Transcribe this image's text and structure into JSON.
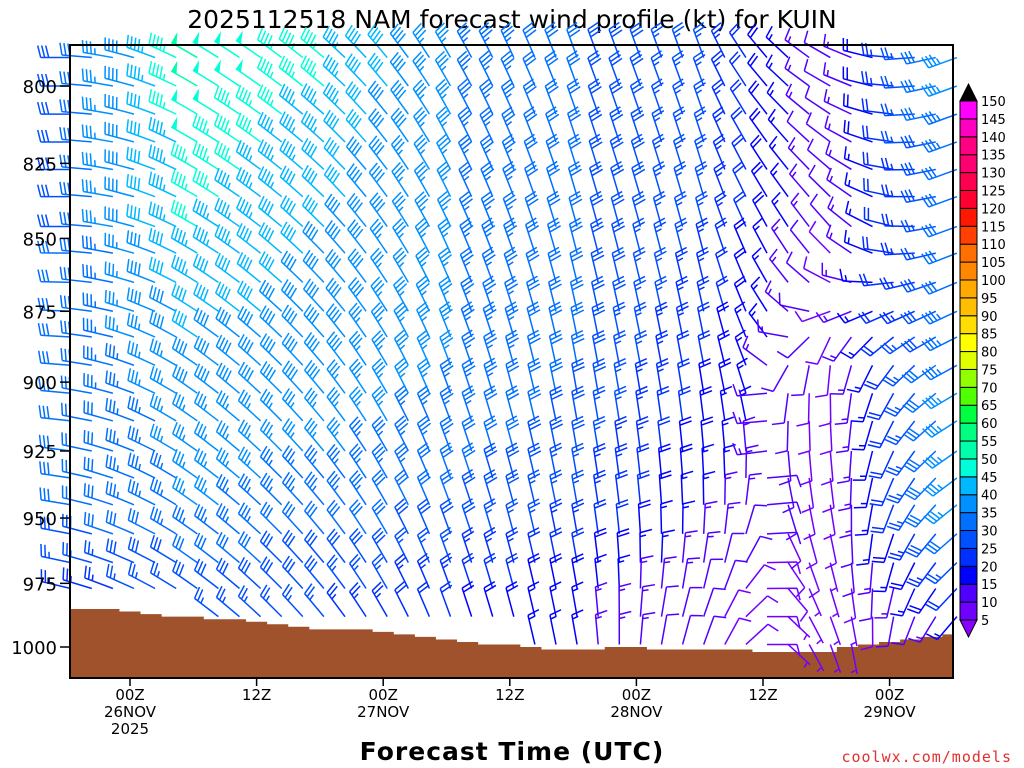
{
  "chart_data": {
    "type": "wind-barb-time-height",
    "title": "2025112518 NAM forecast wind profile (kt) for KUIN",
    "xlabel": "Forecast Time (UTC)",
    "ylabel": "",
    "watermark": "coolwx.com/models",
    "y_axis": {
      "scale": "log-pressure",
      "range_mb": [
        787,
        1012
      ],
      "ticks": [
        800,
        825,
        850,
        875,
        900,
        925,
        950,
        975,
        1000
      ]
    },
    "x_axis": {
      "units": "hours from 00Z 26NOV2025",
      "range_h": [
        -6,
        78
      ],
      "ticks": [
        {
          "h": 0,
          "line1": "00Z",
          "line2": "26NOV",
          "line3": "2025"
        },
        {
          "h": 12,
          "line1": "12Z",
          "line2": "",
          "line3": ""
        },
        {
          "h": 24,
          "line1": "00Z",
          "line2": "27NOV",
          "line3": ""
        },
        {
          "h": 36,
          "line1": "12Z",
          "line2": "",
          "line3": ""
        },
        {
          "h": 48,
          "line1": "00Z",
          "line2": "28NOV",
          "line3": ""
        },
        {
          "h": 60,
          "line1": "12Z",
          "line2": "",
          "line3": ""
        },
        {
          "h": 72,
          "line1": "00Z",
          "line2": "29NOV",
          "line3": ""
        }
      ]
    },
    "barb_times_h": [
      -6,
      -4,
      -2,
      0,
      2,
      4,
      6,
      8,
      10,
      12,
      14,
      16,
      18,
      20,
      22,
      24,
      26,
      28,
      30,
      32,
      34,
      36,
      38,
      40,
      42,
      44,
      46,
      48,
      50,
      52,
      54,
      56,
      58,
      60,
      62,
      64,
      66,
      68,
      70,
      72,
      74,
      76,
      78
    ],
    "barb_levels_mb": [
      791,
      800,
      809,
      818,
      827,
      836,
      846,
      855,
      865,
      875,
      884,
      894,
      904,
      914,
      925,
      935,
      945,
      956,
      967,
      977,
      988,
      999
    ],
    "surface_pressure_mb": [
      985,
      985,
      985,
      986,
      987,
      988,
      988,
      989,
      989,
      990,
      991,
      992,
      993,
      993,
      993,
      994,
      995,
      996,
      997,
      998,
      999,
      999,
      1000,
      1001,
      1001,
      1001,
      1000,
      1000,
      1001,
      1001,
      1001,
      1001,
      1001,
      1002,
      1002,
      1002,
      1002,
      1000,
      999,
      998,
      997,
      996,
      995
    ],
    "wind_keyframes": {
      "times_h": [
        -6,
        6,
        18,
        30,
        42,
        54,
        66,
        78
      ],
      "levels_mb": [
        800,
        850,
        900,
        950,
        990
      ],
      "speed_kt": [
        [
          28,
          50,
          45,
          35,
          30,
          25,
          10,
          35
        ],
        [
          30,
          45,
          40,
          35,
          30,
          25,
          10,
          30
        ],
        [
          30,
          38,
          38,
          35,
          30,
          20,
          8,
          35
        ],
        [
          30,
          35,
          33,
          30,
          25,
          15,
          8,
          35
        ],
        [
          20,
          25,
          25,
          20,
          15,
          10,
          5,
          15
        ]
      ],
      "direction_deg": [
        [
          270,
          300,
          310,
          330,
          340,
          340,
          300,
          250
        ],
        [
          270,
          300,
          315,
          335,
          345,
          345,
          320,
          250
        ],
        [
          275,
          305,
          320,
          340,
          350,
          350,
          180,
          240
        ],
        [
          280,
          305,
          320,
          340,
          350,
          0,
          170,
          230
        ],
        [
          285,
          305,
          320,
          340,
          350,
          20,
          160,
          220
        ]
      ]
    },
    "colorbar": {
      "labels": [
        5,
        10,
        15,
        20,
        25,
        30,
        35,
        40,
        45,
        50,
        55,
        60,
        65,
        70,
        75,
        80,
        85,
        90,
        95,
        100,
        105,
        110,
        115,
        120,
        125,
        130,
        135,
        140,
        145,
        150
      ],
      "colors": [
        "#7000ff",
        "#5000ff",
        "#0000ff",
        "#0030ff",
        "#0050ff",
        "#0070ff",
        "#0090ff",
        "#00b8ff",
        "#00ffd8",
        "#00ffaa",
        "#00ff80",
        "#00ff40",
        "#50ff00",
        "#90ff00",
        "#e0ff00",
        "#ffff00",
        "#ffdd00",
        "#ffbf00",
        "#ffaa00",
        "#ff8800",
        "#ff7000",
        "#ff4000",
        "#ff1800",
        "#ff0030",
        "#ff0050",
        "#ff0070",
        "#ff0080",
        "#ff00c0",
        "#ff00ff"
      ],
      "under_color": "#8a00ff",
      "over_color": "#000000"
    },
    "terrain_color": "#a0522d",
    "watermark_color": "#e03030"
  }
}
